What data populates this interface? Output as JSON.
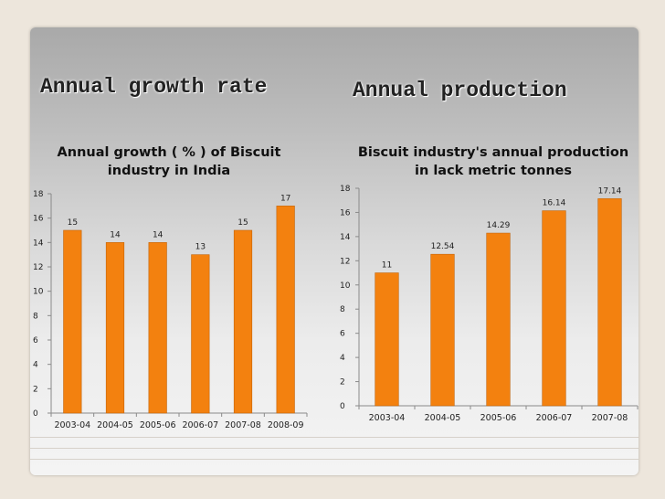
{
  "slide": {
    "heading_left": "Annual growth rate",
    "heading_right": "Annual production"
  },
  "colors": {
    "bar": "#f3810f",
    "bar_edge": "#c4650a",
    "axis": "#8a8a8a"
  },
  "chart_data": [
    {
      "type": "bar",
      "title_line1": "Annual growth ( % ) of Biscuit",
      "title_line2": "industry in India",
      "categories": [
        "2003-04",
        "2004-05",
        "2005-06",
        "2006-07",
        "2007-08",
        "2008-09"
      ],
      "values": [
        15,
        14,
        14,
        13,
        15,
        17
      ],
      "value_labels": [
        "15",
        "14",
        "14",
        "13",
        "15",
        "17"
      ],
      "ylim": [
        0,
        18
      ],
      "yticks": [
        0,
        2,
        4,
        6,
        8,
        10,
        12,
        14,
        16,
        18
      ],
      "ytick_labels": [
        "0",
        "2",
        "4",
        "6",
        "8",
        "10",
        "12",
        "14",
        "16",
        "18"
      ],
      "xlabel": "",
      "ylabel": ""
    },
    {
      "type": "bar",
      "title_line1": "Biscuit industry's annual production",
      "title_line2": "in lack metric tonnes",
      "categories": [
        "2003-04",
        "2004-05",
        "2005-06",
        "2006-07",
        "2007-08"
      ],
      "values": [
        11,
        12.54,
        14.29,
        16.14,
        17.14
      ],
      "value_labels": [
        "11",
        "12.54",
        "14.29",
        "16.14",
        "17.14"
      ],
      "ylim": [
        0,
        18
      ],
      "yticks": [
        0,
        2,
        4,
        6,
        8,
        10,
        12,
        14,
        16,
        18
      ],
      "ytick_labels": [
        "0",
        "2",
        "4",
        "6",
        "8",
        "10",
        "12",
        "14",
        "16",
        "18"
      ],
      "xlabel": "",
      "ylabel": ""
    }
  ]
}
